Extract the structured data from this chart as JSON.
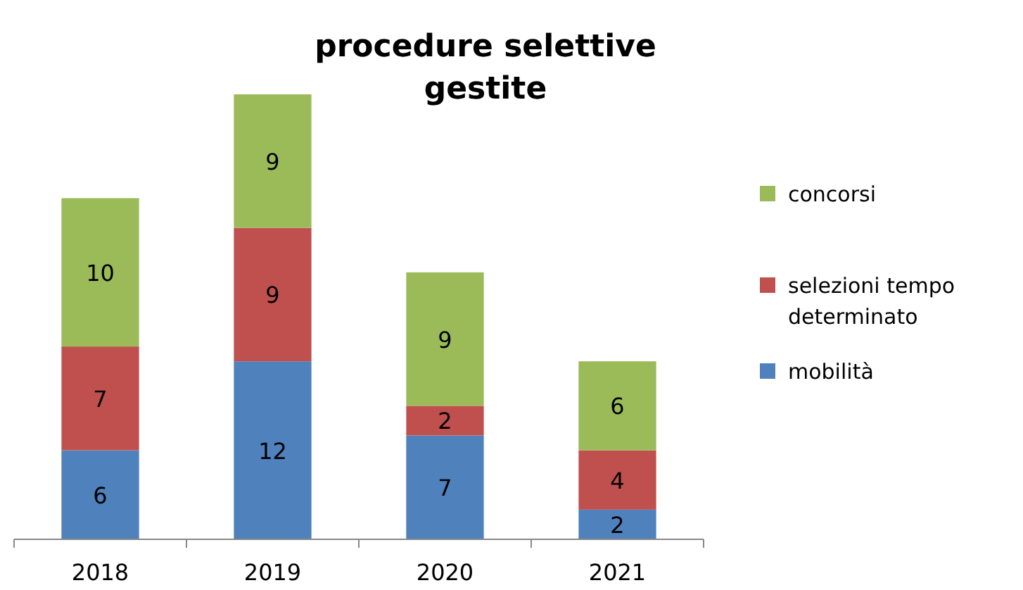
{
  "chart_data": {
    "type": "bar",
    "title": "procedure selettive gestite",
    "stacked": true,
    "data_labels": true,
    "legend": "right",
    "categories": [
      "2018",
      "2019",
      "2020",
      "2021"
    ],
    "series": [
      {
        "name": "mobilità",
        "color": "#4f81bd",
        "values": [
          6,
          12,
          7,
          2
        ]
      },
      {
        "name": "selezioni tempo determinato",
        "color": "#c0504d",
        "values": [
          7,
          9,
          2,
          4
        ]
      },
      {
        "name": "concorsi",
        "color": "#9bbb59",
        "values": [
          10,
          9,
          9,
          6
        ]
      }
    ]
  }
}
